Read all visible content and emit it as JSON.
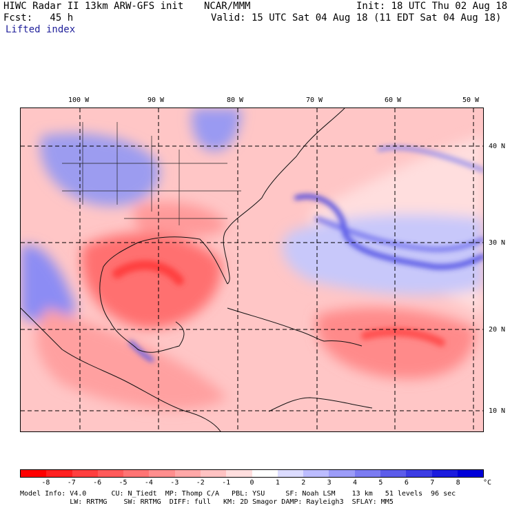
{
  "header": {
    "model_line": "HIWC Radar II 13km ARW-GFS init",
    "center_label": "NCAR/MMM",
    "init_line": "Init: 18 UTC Thu 02 Aug 18",
    "fcst_line": "Fcst:   45 h",
    "valid_line": "Valid: 15 UTC Sat 04 Aug 18 (11 EDT Sat 04 Aug 18)",
    "field_name": "Lifted index"
  },
  "map": {
    "lon_labels": [
      "100 W",
      "90 W",
      "80 W",
      "70 W",
      "60 W",
      "50 W"
    ],
    "lat_labels": [
      "40 N",
      "30 N",
      "20 N",
      "10 N"
    ]
  },
  "colorbar": {
    "ticks": [
      "-8",
      "-7",
      "-6",
      "-5",
      "-4",
      "-3",
      "-2",
      "-1",
      "0",
      "1",
      "2",
      "3",
      "4",
      "5",
      "6",
      "7",
      "8"
    ],
    "unit": "°C",
    "colors": [
      "#ff0000",
      "#ff2020",
      "#ff3f3f",
      "#ff5a5a",
      "#ff7474",
      "#ff8e8e",
      "#ffa8a8",
      "#ffc2c2",
      "#ffdede",
      "#ffffff",
      "#dcdcff",
      "#bcbcff",
      "#9c9cf8",
      "#7c7cf2",
      "#5c5cea",
      "#3c3ce4",
      "#1c1cde",
      "#0000d8"
    ]
  },
  "footer": {
    "line1": "Model Info: V4.0      CU: N_Tiedt  MP: Thomp C/A   PBL: YSU     SF: Noah LSM    13 km   51 levels  96 sec",
    "line2": "            LW: RRTMG    SW: RRTMG  DIFF: full   KM: 2D Smagor DAMP: Rayleigh3  SFLAY: MM5"
  }
}
